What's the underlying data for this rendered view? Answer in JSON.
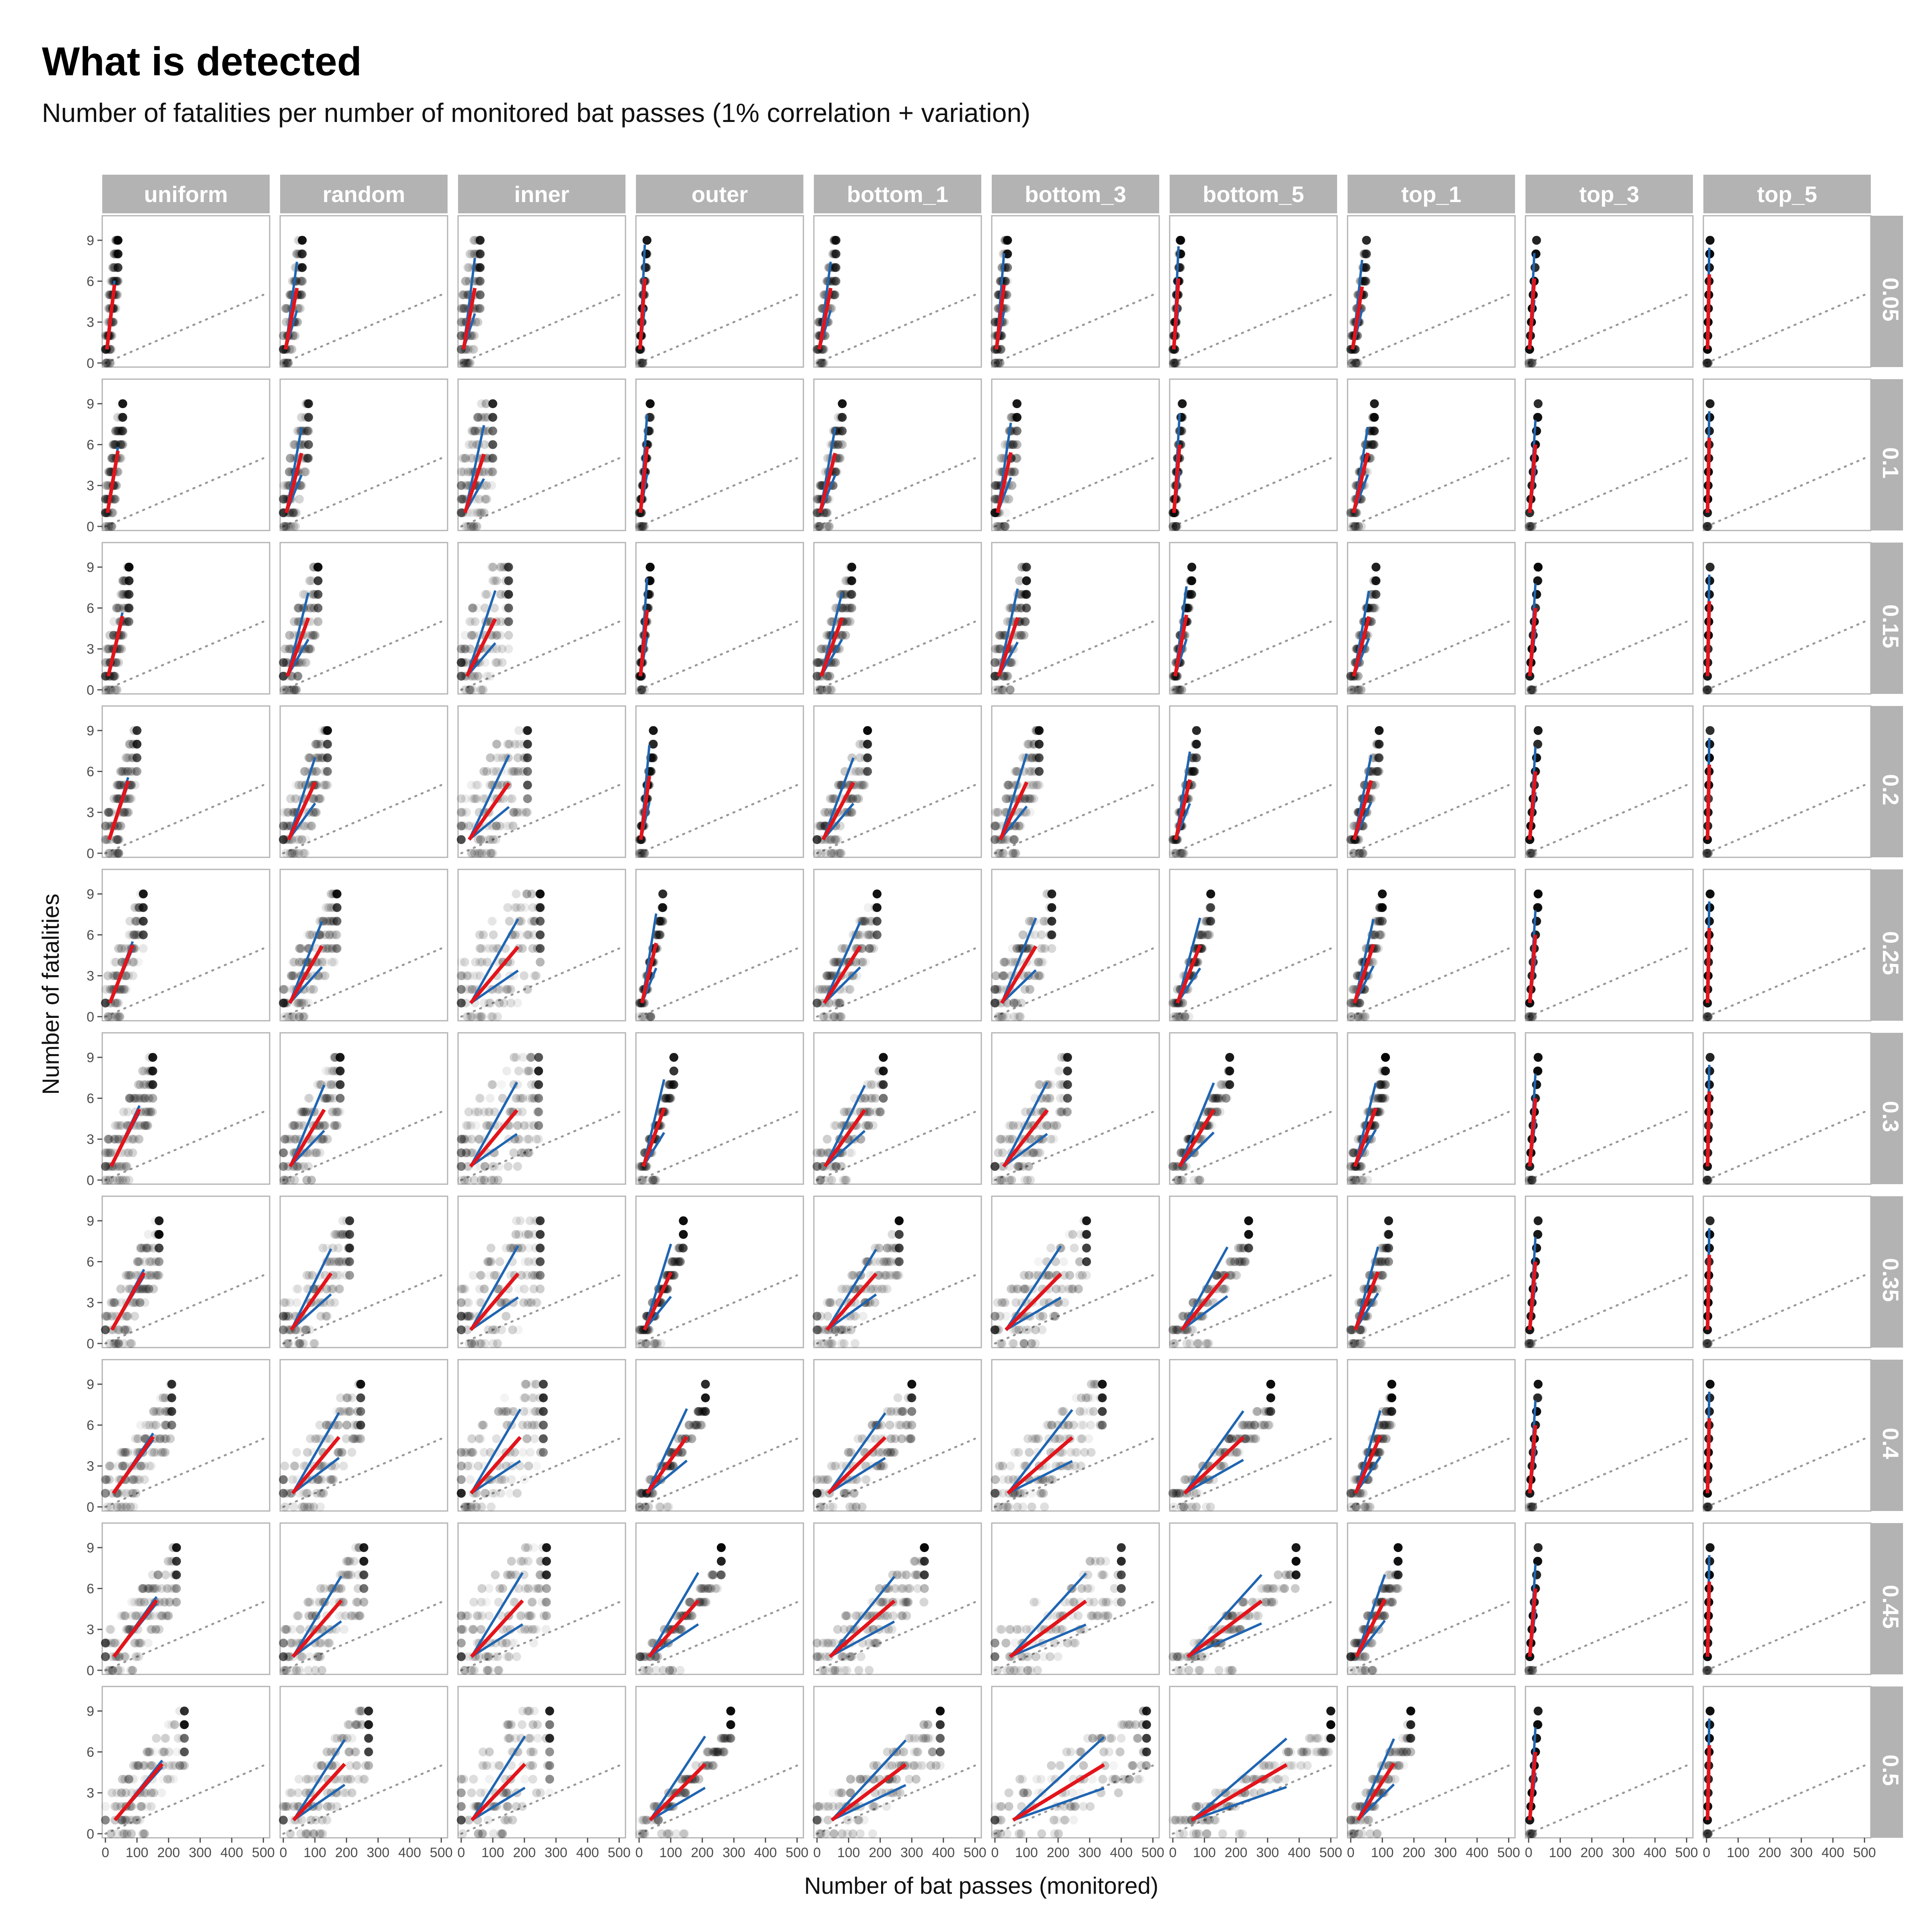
{
  "title": "What is detected",
  "subtitle": "Number of fatalities per number of monitored bat passes (1% correlation + variation)",
  "chart_data": {
    "type": "scatter",
    "facet_type": "grid",
    "xlabel": "Number of bat passes (monitored)",
    "ylabel": "Number of fatalities",
    "xlim": [
      -10,
      520
    ],
    "ylim": [
      -0.3,
      10.8
    ],
    "x_ticks": [
      0,
      100,
      200,
      300,
      400,
      500
    ],
    "y_ticks": [
      0,
      3,
      6,
      9
    ],
    "columns": [
      "uniform",
      "random",
      "inner",
      "outer",
      "bottom_1",
      "bottom_3",
      "bottom_5",
      "top_1",
      "top_3",
      "top_5"
    ],
    "rows": [
      "0.05",
      "0.1",
      "0.15",
      "0.2",
      "0.25",
      "0.3",
      "0.35",
      "0.4",
      "0.45",
      "0.5"
    ],
    "grid": false,
    "colors": {
      "points": "#000000",
      "mean_line": "#e3141b",
      "interval_lines": "#1f65b2",
      "reference_line": "#999999",
      "strip_bg": "#b3b3b3",
      "panel_border": "#b3b3b3"
    },
    "reference_line": {
      "slope": 0.01,
      "intercept": 0
    },
    "column_spread": {
      "uniform": 1.4,
      "random": 1.6,
      "inner": 2.5,
      "outer": 0.45,
      "bottom_1": 1.2,
      "bottom_3": 1.6,
      "bottom_5": 0.6,
      "top_1": 0.8,
      "top_3": 0.12,
      "top_5": 0.04
    },
    "column_uncertainty": {
      "uniform": 0.05,
      "random": 0.35,
      "inner": 0.4,
      "outer": 0.4,
      "bottom_1": 0.35,
      "bottom_3": 0.4,
      "bottom_5": 0.38,
      "top_1": 0.35,
      "top_3": 0.3,
      "top_5": 0.3
    },
    "row_x_max": {
      "0.05": [
        40,
        60,
        60,
        25,
        60,
        40,
        25,
        50,
        25,
        12
      ],
      "0.1": [
        55,
        80,
        100,
        35,
        80,
        70,
        30,
        75,
        30,
        12
      ],
      "0.15": [
        75,
        110,
        150,
        35,
        110,
        100,
        60,
        80,
        30,
        12
      ],
      "0.2": [
        100,
        140,
        210,
        45,
        160,
        140,
        75,
        90,
        30,
        12
      ],
      "0.25": [
        120,
        170,
        250,
        75,
        190,
        180,
        120,
        100,
        30,
        12
      ],
      "0.3": [
        150,
        180,
        245,
        110,
        210,
        230,
        180,
        110,
        30,
        12
      ],
      "0.35": [
        170,
        210,
        250,
        140,
        260,
        290,
        240,
        120,
        30,
        12
      ],
      "0.4": [
        210,
        245,
        260,
        210,
        300,
        340,
        310,
        130,
        30,
        12
      ],
      "0.45": [
        225,
        255,
        270,
        260,
        340,
        400,
        390,
        150,
        30,
        12
      ],
      "0.5": [
        250,
        270,
        280,
        290,
        390,
        480,
        500,
        190,
        30,
        12
      ]
    }
  }
}
